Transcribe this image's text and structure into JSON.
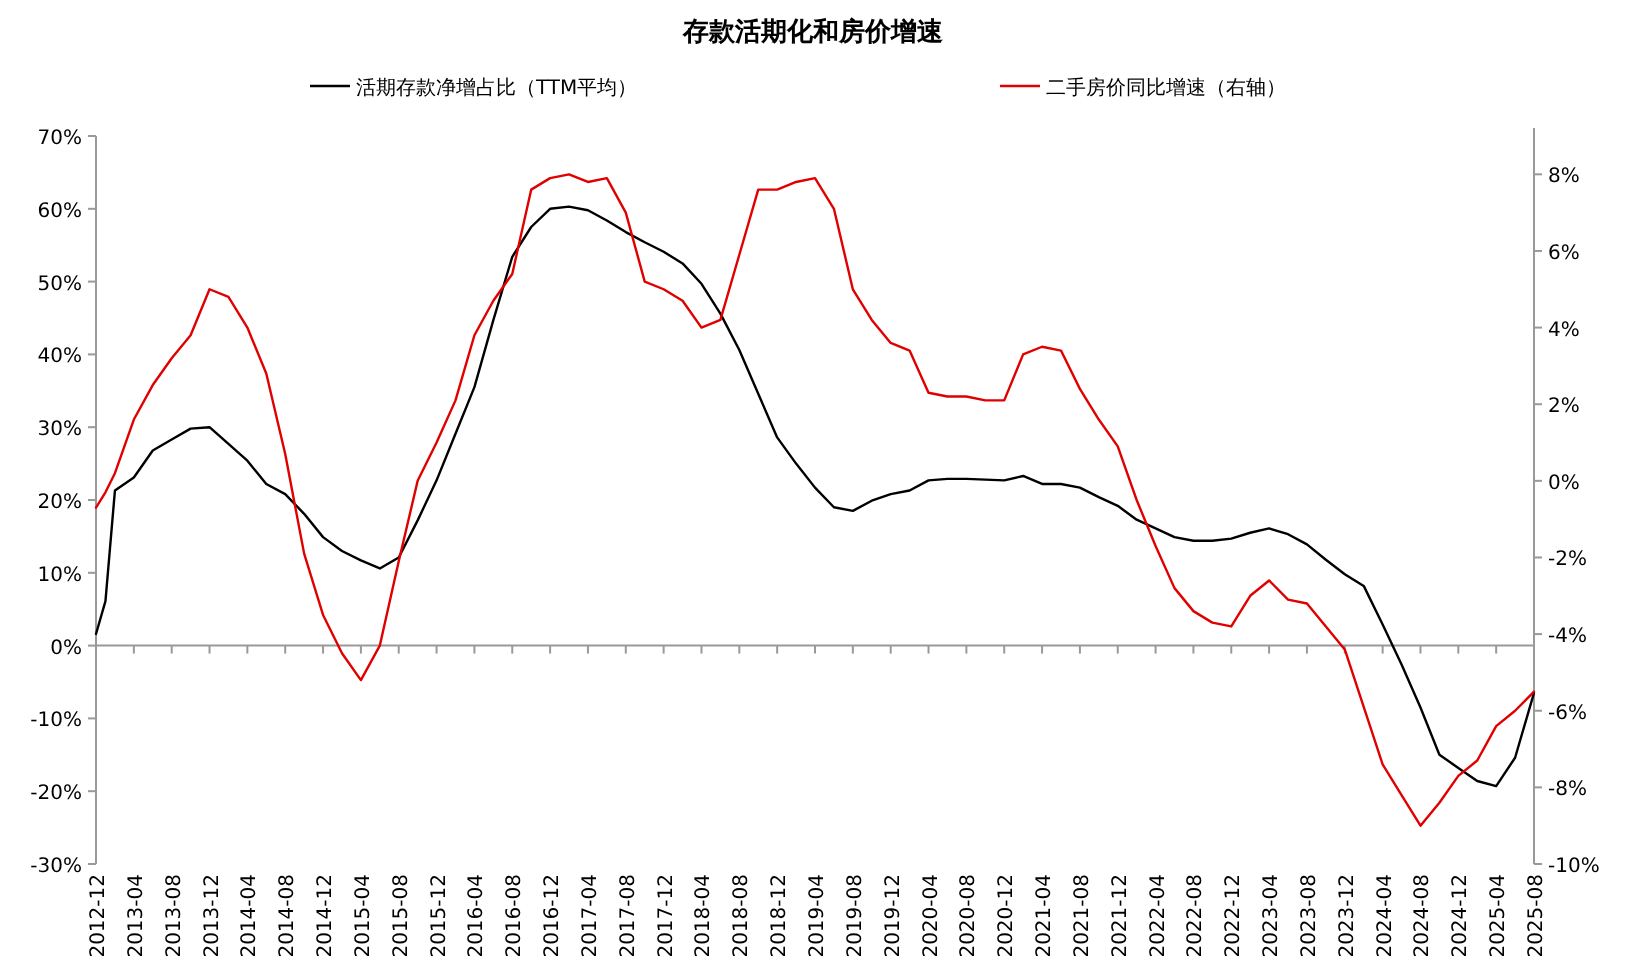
{
  "chart_data": {
    "type": "line",
    "title": "存款活期化和房价增速",
    "x": [
      "2012-12",
      "2013-01",
      "2013-02",
      "2013-04",
      "2013-06",
      "2013-08",
      "2013-10",
      "2013-12",
      "2014-02",
      "2014-04",
      "2014-06",
      "2014-08",
      "2014-10",
      "2014-12",
      "2015-02",
      "2015-04",
      "2015-06",
      "2015-08",
      "2015-10",
      "2015-12",
      "2016-02",
      "2016-04",
      "2016-06",
      "2016-08",
      "2016-10",
      "2016-12",
      "2017-02",
      "2017-04",
      "2017-06",
      "2017-08",
      "2017-10",
      "2017-12",
      "2018-02",
      "2018-04",
      "2018-06",
      "2018-08",
      "2018-10",
      "2018-12",
      "2019-02",
      "2019-04",
      "2019-06",
      "2019-08",
      "2019-10",
      "2019-12",
      "2020-02",
      "2020-04",
      "2020-06",
      "2020-08",
      "2020-10",
      "2020-12",
      "2021-02",
      "2021-04",
      "2021-06",
      "2021-08",
      "2021-10",
      "2021-12",
      "2022-02",
      "2022-04",
      "2022-06",
      "2022-08",
      "2022-10",
      "2022-12",
      "2023-02",
      "2023-04",
      "2023-06",
      "2023-08",
      "2023-10",
      "2023-12",
      "2024-02",
      "2024-04",
      "2024-06",
      "2024-08",
      "2024-10",
      "2024-12",
      "2025-02",
      "2025-04",
      "2025-06",
      "2025-08"
    ],
    "series": [
      {
        "name": "活期存款净增占比（TTM平均）",
        "color": "#000000",
        "values": [
          1.6,
          6.1,
          21.3,
          23.1,
          26.8,
          28.3,
          29.8,
          30,
          27.7,
          25.4,
          22.2,
          20.8,
          18.1,
          14.9,
          13,
          11.7,
          10.6,
          12.1,
          17.2,
          22.7,
          29.1,
          35.5,
          44.7,
          53.4,
          57.5,
          60,
          60.3,
          59.8,
          58.4,
          56.8,
          55.4,
          54.1,
          52.5,
          49.7,
          45.6,
          40.6,
          34.6,
          28.6,
          25,
          21.7,
          19,
          18.5,
          19.9,
          20.8,
          21.3,
          22.7,
          22.9,
          22.9,
          22.8,
          22.7,
          23.3,
          22.2,
          22.2,
          21.7,
          20.4,
          19.2,
          17.3,
          16.1,
          14.9,
          14.4,
          14.4,
          14.7,
          15.5,
          16.1,
          15.3,
          13.9,
          11.8,
          9.8,
          8.2,
          2.9,
          -2.6,
          -8.5,
          -15,
          -16.8,
          -18.6,
          -19.3,
          -15.4,
          -6.5
        ]
      },
      {
        "name": "二手房价同比增速（右轴）",
        "color": "#e00000",
        "axis": "y2",
        "values": [
          -0.7,
          -0.3,
          0.2,
          1.6,
          2.5,
          3.2,
          3.8,
          5.0,
          4.8,
          4.0,
          2.8,
          0.7,
          -1.9,
          -3.5,
          -4.5,
          -5.2,
          -4.3,
          -2.1,
          0.0,
          1.0,
          2.1,
          3.8,
          4.7,
          5.4,
          7.6,
          7.9,
          8.0,
          7.8,
          7.9,
          7.0,
          5.2,
          5.0,
          4.7,
          4.0,
          4.2,
          5.9,
          7.6,
          7.6,
          7.8,
          7.9,
          7.1,
          5.0,
          4.2,
          3.6,
          3.4,
          2.3,
          2.2,
          2.2,
          2.1,
          2.1,
          3.3,
          3.5,
          3.4,
          2.4,
          1.6,
          0.9,
          -0.5,
          -1.7,
          -2.8,
          -3.4,
          -3.7,
          -3.8,
          -3.0,
          -2.6,
          -3.1,
          -3.2,
          -3.8,
          -4.4,
          -5.9,
          -7.4,
          -8.2,
          -9.0,
          -8.4,
          -7.7,
          -7.3,
          -6.4,
          -6.0,
          -5.5
        ]
      }
    ],
    "xlim": [
      "2012-12",
      "2025-08"
    ],
    "xticks": [
      "2012-12",
      "2013-04",
      "2013-08",
      "2013-12",
      "2014-04",
      "2014-08",
      "2014-12",
      "2015-04",
      "2015-08",
      "2015-12",
      "2016-04",
      "2016-08",
      "2016-12",
      "2017-04",
      "2017-08",
      "2017-12",
      "2018-04",
      "2018-08",
      "2018-12",
      "2019-04",
      "2019-08",
      "2019-12",
      "2020-04",
      "2020-08",
      "2020-12",
      "2021-04",
      "2021-08",
      "2021-12",
      "2022-04",
      "2022-08",
      "2022-12",
      "2023-04",
      "2023-08",
      "2023-12",
      "2024-04",
      "2024-08",
      "2024-12",
      "2025-04",
      "2025-08"
    ],
    "ylim": [
      -30,
      70
    ],
    "yticks": [
      {
        "value": -30,
        "label": "-30%"
      },
      {
        "value": -20,
        "label": "-20%"
      },
      {
        "value": -10,
        "label": "-10%"
      },
      {
        "value": 0,
        "label": "0%"
      },
      {
        "value": 10,
        "label": "10%"
      },
      {
        "value": 20,
        "label": "20%"
      },
      {
        "value": 30,
        "label": "30%"
      },
      {
        "value": 40,
        "label": "40%"
      },
      {
        "value": 50,
        "label": "50%"
      },
      {
        "value": 60,
        "label": "60%"
      },
      {
        "value": 70,
        "label": "70%"
      }
    ],
    "y2lim": [
      -10,
      9
    ],
    "y2ticks": [
      {
        "value": -10,
        "label": "-10%"
      },
      {
        "value": -8,
        "label": "-8%"
      },
      {
        "value": -6,
        "label": "-6%"
      },
      {
        "value": -4,
        "label": "-4%"
      },
      {
        "value": -2,
        "label": "-2%"
      },
      {
        "value": 0,
        "label": "0%"
      },
      {
        "value": 2,
        "label": "2%"
      },
      {
        "value": 4,
        "label": "4%"
      },
      {
        "value": 6,
        "label": "6%"
      },
      {
        "value": 8,
        "label": "8%"
      }
    ],
    "legend": "top",
    "marker": "none",
    "line_style": "solid"
  }
}
